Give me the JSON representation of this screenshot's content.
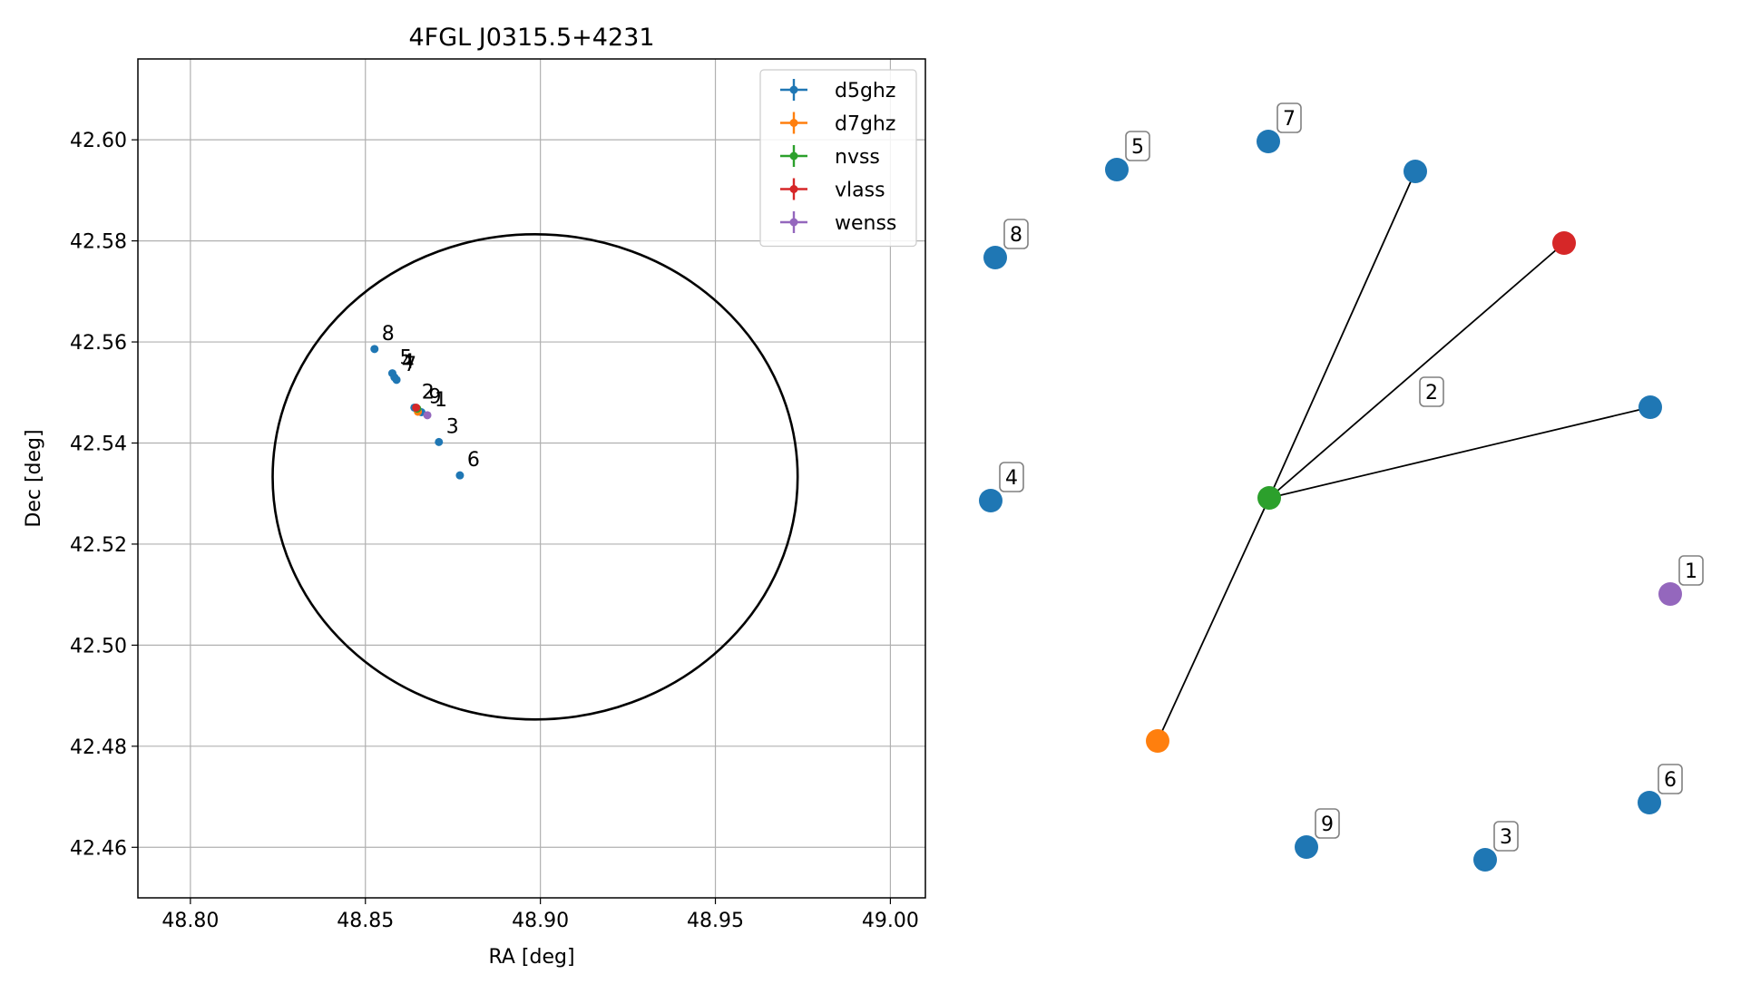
{
  "chart_data": [
    {
      "type": "scatter",
      "title": "4FGL J0315.5+4231",
      "xlabel": "RA [deg]",
      "ylabel": "Dec [deg]",
      "xlim": [
        48.785,
        49.01
      ],
      "ylim": [
        42.45,
        42.616
      ],
      "xticks": [
        48.8,
        48.85,
        48.9,
        48.95,
        49.0
      ],
      "xtick_labels": [
        "48.80",
        "48.85",
        "48.90",
        "48.95",
        "49.00"
      ],
      "yticks": [
        42.46,
        42.48,
        42.5,
        42.52,
        42.54,
        42.56,
        42.58,
        42.6
      ],
      "ytick_labels": [
        "42.46",
        "42.48",
        "42.50",
        "42.52",
        "42.54",
        "42.56",
        "42.58",
        "42.60"
      ],
      "grid": true,
      "legend_position": "top-right",
      "ellipse": {
        "center": [
          48.8985,
          42.5333
        ],
        "ra_semi_axis": 0.075,
        "dec_semi_axis": 0.048,
        "color": "#000000"
      },
      "series": [
        {
          "name": "d5ghz",
          "color": "#1f77b4",
          "points": [
            {
              "label": "8",
              "ra": 48.8526,
              "dec": 42.5586
            },
            {
              "label": "5",
              "ra": 48.8577,
              "dec": 42.5538
            },
            {
              "label": "4",
              "ra": 48.8583,
              "dec": 42.553
            },
            {
              "label": "7",
              "ra": 48.8589,
              "dec": 42.5525
            },
            {
              "label": "2",
              "ra": 48.864,
              "dec": 42.547
            },
            {
              "label": "9",
              "ra": 48.866,
              "dec": 42.5461
            },
            {
              "label": "3",
              "ra": 48.871,
              "dec": 42.5402
            },
            {
              "label": "6",
              "ra": 48.877,
              "dec": 42.5336
            }
          ]
        },
        {
          "name": "d7ghz",
          "color": "#ff7f0e",
          "points": [
            {
              "ra": 48.865,
              "dec": 42.5462
            }
          ]
        },
        {
          "name": "nvss",
          "color": "#2ca02c",
          "points": [
            {
              "ra": 48.8648,
              "dec": 42.5468
            }
          ]
        },
        {
          "name": "vlass",
          "color": "#d62728",
          "points": [
            {
              "ra": 48.8645,
              "dec": 42.547
            }
          ]
        },
        {
          "name": "wenss",
          "color": "#9467bd",
          "points": [
            {
              "label": "1",
              "ra": 48.8677,
              "dec": 42.5455
            }
          ]
        }
      ]
    },
    {
      "type": "network",
      "nodes": [
        {
          "id": "n7",
          "label": "7",
          "color": "#1f77b4"
        },
        {
          "id": "n5",
          "label": "5",
          "color": "#1f77b4"
        },
        {
          "id": "n8",
          "label": "8",
          "color": "#1f77b4"
        },
        {
          "id": "n4",
          "label": "4",
          "color": "#1f77b4"
        },
        {
          "id": "n9",
          "label": "9",
          "color": "#1f77b4"
        },
        {
          "id": "n3",
          "label": "3",
          "color": "#1f77b4"
        },
        {
          "id": "n6",
          "label": "6",
          "color": "#1f77b4"
        },
        {
          "id": "n1",
          "label": "1",
          "color": "#9467bd"
        },
        {
          "id": "hub",
          "label": "",
          "color": "#2ca02c"
        },
        {
          "id": "top",
          "label": "",
          "color": "#1f77b4"
        },
        {
          "id": "red",
          "label": "",
          "color": "#d62728"
        },
        {
          "id": "right",
          "label": "",
          "color": "#1f77b4"
        },
        {
          "id": "orange",
          "label": "",
          "color": "#ff7f0e"
        }
      ],
      "edges": [
        {
          "from": "hub",
          "to": "top"
        },
        {
          "from": "hub",
          "to": "red"
        },
        {
          "from": "hub",
          "to": "right"
        },
        {
          "from": "hub",
          "to": "orange"
        }
      ],
      "group_label": "2"
    }
  ]
}
